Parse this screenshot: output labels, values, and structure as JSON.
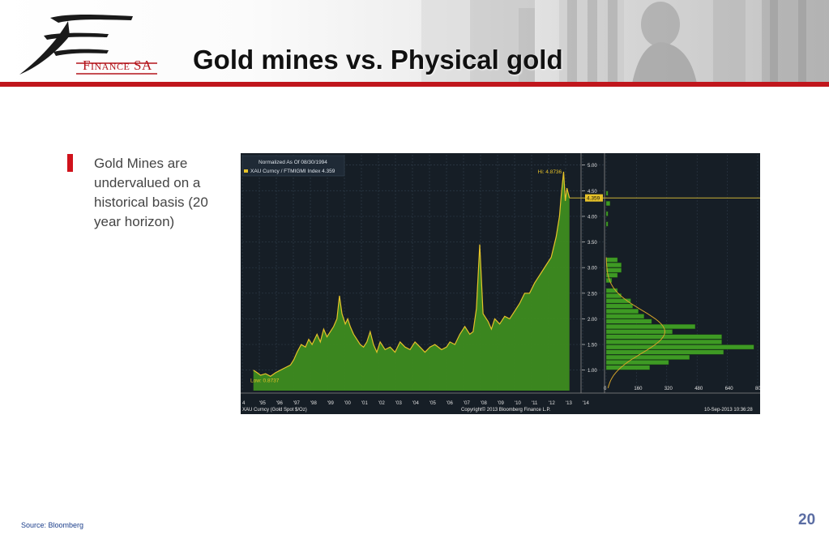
{
  "slide": {
    "title": "Gold mines vs. Physical gold",
    "brand": "Finance SA",
    "bullet": "Gold Mines are undervalued on a historical basis (20 year horizon)",
    "source": "Source:  Bloomberg",
    "page_number": "20"
  },
  "colors": {
    "accent_red": "#c0161c",
    "chart_bg": "#161e26",
    "area_fill": "#3d8c1f",
    "line_yellow": "#e6c229",
    "histogram_green": "#3e9a24"
  },
  "chart_data": {
    "type": "area",
    "legend": {
      "line1": "Normalized As Of 08/30/1994",
      "line2": "XAU Curncy / FTMIGMI Index  4.359"
    },
    "x_ticks": [
      "4",
      "'95",
      "'96",
      "'97",
      "'98",
      "'99",
      "'00",
      "'01",
      "'02",
      "'03",
      "'04",
      "'05",
      "'06",
      "'07",
      "'08",
      "'09",
      "'10",
      "'11",
      "'12",
      "'13",
      "'14"
    ],
    "y_ticks": [
      "1.00",
      "1.50",
      "2.00",
      "2.50",
      "3.00",
      "3.50",
      "4.00",
      "4.50",
      "5.00"
    ],
    "ylim": [
      0.6,
      5.2
    ],
    "last_value": "4.359",
    "high_label": "Hi: 4.8736",
    "low_label": "Low: 0.8737",
    "x": [
      1994.67,
      1994.9,
      1995.1,
      1995.4,
      1995.7,
      1996.0,
      1996.3,
      1996.6,
      1996.9,
      1997.1,
      1997.3,
      1997.55,
      1997.8,
      1998.0,
      1998.2,
      1998.5,
      1998.7,
      1998.9,
      1999.1,
      1999.3,
      1999.5,
      1999.7,
      1999.85,
      2000.0,
      2000.2,
      2000.35,
      2000.5,
      2000.7,
      2000.9,
      2001.1,
      2001.3,
      2001.5,
      2001.7,
      2001.9,
      2002.1,
      2002.3,
      2002.6,
      2002.9,
      2003.2,
      2003.5,
      2003.8,
      2004.1,
      2004.4,
      2004.7,
      2005.0,
      2005.3,
      2005.6,
      2006.0,
      2006.3,
      2006.5,
      2006.8,
      2007.1,
      2007.4,
      2007.7,
      2007.9,
      2008.1,
      2008.3,
      2008.5,
      2008.7,
      2008.8,
      2009.0,
      2009.2,
      2009.5,
      2009.8,
      2010.1,
      2010.4,
      2010.7,
      2011.0,
      2011.3,
      2011.6,
      2011.8,
      2012.0,
      2012.3,
      2012.6,
      2012.9,
      2013.1,
      2013.2,
      2013.35,
      2013.45,
      2013.55,
      2013.7
    ],
    "y": [
      1.0,
      0.95,
      0.9,
      0.93,
      0.88,
      0.95,
      1.0,
      1.05,
      1.1,
      1.2,
      1.35,
      1.5,
      1.45,
      1.6,
      1.5,
      1.7,
      1.55,
      1.8,
      1.65,
      1.75,
      1.85,
      2.0,
      2.45,
      2.1,
      1.9,
      2.0,
      1.85,
      1.7,
      1.6,
      1.5,
      1.45,
      1.55,
      1.75,
      1.5,
      1.35,
      1.55,
      1.4,
      1.45,
      1.35,
      1.55,
      1.45,
      1.4,
      1.55,
      1.45,
      1.35,
      1.45,
      1.5,
      1.4,
      1.45,
      1.55,
      1.5,
      1.7,
      1.85,
      1.7,
      1.75,
      2.2,
      3.45,
      2.1,
      2.0,
      1.95,
      1.8,
      2.0,
      1.9,
      2.05,
      2.0,
      2.15,
      2.3,
      2.5,
      2.5,
      2.7,
      2.8,
      2.9,
      3.05,
      3.2,
      3.6,
      4.0,
      4.4,
      4.87,
      4.3,
      4.55,
      4.359
    ],
    "histogram": {
      "x_ticks": [
        "0",
        "160",
        "320",
        "480",
        "640",
        "800"
      ],
      "bins": [
        {
          "y": 0.95,
          "count": 0
        },
        {
          "y": 1.05,
          "count": 230
        },
        {
          "y": 1.15,
          "count": 330
        },
        {
          "y": 1.25,
          "count": 440
        },
        {
          "y": 1.35,
          "count": 620
        },
        {
          "y": 1.45,
          "count": 780
        },
        {
          "y": 1.55,
          "count": 610
        },
        {
          "y": 1.65,
          "count": 610
        },
        {
          "y": 1.75,
          "count": 350
        },
        {
          "y": 1.85,
          "count": 470
        },
        {
          "y": 1.95,
          "count": 240
        },
        {
          "y": 2.05,
          "count": 200
        },
        {
          "y": 2.15,
          "count": 170
        },
        {
          "y": 2.25,
          "count": 140
        },
        {
          "y": 2.35,
          "count": 130
        },
        {
          "y": 2.45,
          "count": 80
        },
        {
          "y": 2.55,
          "count": 60
        },
        {
          "y": 2.65,
          "count": 0
        },
        {
          "y": 2.75,
          "count": 30
        },
        {
          "y": 2.85,
          "count": 60
        },
        {
          "y": 2.95,
          "count": 80
        },
        {
          "y": 3.05,
          "count": 80
        },
        {
          "y": 3.15,
          "count": 60
        },
        {
          "y": 3.85,
          "count": 10
        },
        {
          "y": 4.05,
          "count": 10
        },
        {
          "y": 4.25,
          "count": 20
        },
        {
          "y": 4.45,
          "count": 10
        }
      ]
    },
    "footer_left": "XAU Curncy (Gold Spot  $/Oz)",
    "footer_center": "Copyright© 2013 Bloomberg Finance L.P.",
    "footer_right": "10-Sep-2013 10:36:28"
  }
}
